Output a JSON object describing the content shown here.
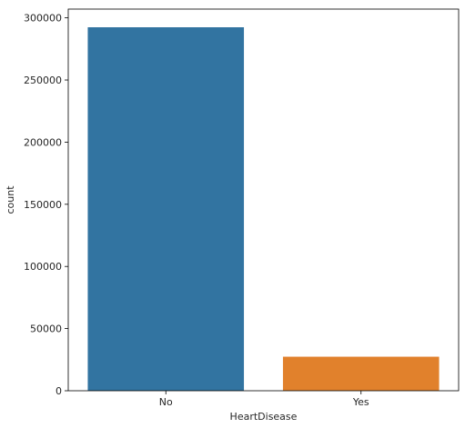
{
  "chart_data": {
    "type": "bar",
    "categories": [
      "No",
      "Yes"
    ],
    "values": [
      292422,
      27373
    ],
    "colors": [
      "#3274a1",
      "#e1812c"
    ],
    "xlabel": "HeartDisease",
    "ylabel": "count",
    "ylim": [
      0,
      307043
    ],
    "yticks": [
      0,
      50000,
      100000,
      150000,
      200000,
      250000,
      300000
    ],
    "ytick_labels": [
      "0",
      "50000",
      "100000",
      "150000",
      "200000",
      "250000",
      "300000"
    ],
    "grid": false,
    "legend": "none"
  }
}
